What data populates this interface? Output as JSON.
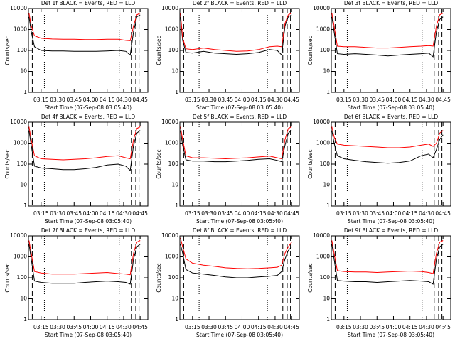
{
  "chart_data": [
    {
      "type": "line",
      "title": "Det 1f BLACK = Events, RED = LLD",
      "xlabel": "Start Time (07-Sep-08 03:05:40)",
      "ylabel": "Counts/sec",
      "log_y": true,
      "x": [
        184,
        186,
        189,
        195,
        205,
        215,
        225,
        235,
        245,
        255,
        265,
        272,
        276,
        279,
        282,
        285
      ],
      "series": [
        {
          "color": "#000000",
          "values": [
            4000,
            800,
            150,
            100,
            95,
            95,
            90,
            90,
            90,
            95,
            100,
            90,
            60,
            800,
            4000,
            5000
          ]
        },
        {
          "color": "#ff0000",
          "values": [
            6000,
            1500,
            500,
            380,
            350,
            340,
            340,
            330,
            330,
            340,
            340,
            300,
            290,
            1500,
            5000,
            6000
          ]
        }
      ],
      "xlim": [
        183.5,
        292
      ],
      "ylim": [
        1,
        10000
      ],
      "xticks": [
        {
          "value": 195,
          "label": "03:15"
        },
        {
          "value": 210,
          "label": "03:30"
        },
        {
          "value": 225,
          "label": "03:45"
        },
        {
          "value": 240,
          "label": "04:00"
        },
        {
          "value": 255,
          "label": "04:15"
        },
        {
          "value": 270,
          "label": "04:30"
        },
        {
          "value": 285,
          "label": "04:45"
        }
      ],
      "yticks": [
        1,
        10,
        100,
        1000,
        10000
      ],
      "dotted_x": [
        198,
        266
      ],
      "dashed_x": [
        187,
        277,
        281,
        284
      ]
    },
    {
      "type": "line",
      "title": "Det 2f BLACK = Events, RED = LLD",
      "xlabel": "Start Time (07-Sep-08 03:05:40)",
      "ylabel": "Counts/sec",
      "log_y": true,
      "x": [
        184,
        186,
        189,
        195,
        205,
        215,
        225,
        235,
        245,
        255,
        265,
        272,
        276,
        279,
        282,
        285
      ],
      "series": [
        {
          "color": "#000000",
          "values": [
            4000,
            300,
            80,
            75,
            90,
            75,
            70,
            65,
            70,
            80,
            110,
            100,
            60,
            1500,
            4000,
            5000
          ]
        },
        {
          "color": "#ff0000",
          "values": [
            6000,
            400,
            120,
            110,
            130,
            110,
            100,
            90,
            95,
            110,
            150,
            160,
            150,
            2000,
            5000,
            6000
          ]
        }
      ],
      "xlim": [
        183.5,
        292
      ],
      "ylim": [
        1,
        10000
      ],
      "xticks": [
        {
          "value": 195,
          "label": "03:15"
        },
        {
          "value": 210,
          "label": "03:30"
        },
        {
          "value": 225,
          "label": "03:45"
        },
        {
          "value": 240,
          "label": "04:00"
        },
        {
          "value": 255,
          "label": "04:15"
        },
        {
          "value": 270,
          "label": "04:30"
        },
        {
          "value": 285,
          "label": "04:45"
        }
      ],
      "yticks": [
        1,
        10,
        100,
        1000,
        10000
      ],
      "dotted_x": [
        201,
        263
      ],
      "dashed_x": [
        187,
        277,
        281,
        284
      ]
    },
    {
      "type": "line",
      "title": "Det 3f BLACK = Events, RED = LLD",
      "xlabel": "Start Time (07-Sep-08 03:05:40)",
      "ylabel": "Counts/sec",
      "log_y": true,
      "x": [
        184,
        186,
        189,
        195,
        205,
        215,
        225,
        235,
        245,
        255,
        265,
        272,
        276,
        279,
        282,
        285
      ],
      "series": [
        {
          "color": "#000000",
          "values": [
            4000,
            800,
            70,
            65,
            70,
            65,
            60,
            55,
            60,
            65,
            70,
            75,
            50,
            800,
            3000,
            4000
          ]
        },
        {
          "color": "#ff0000",
          "values": [
            6000,
            1500,
            160,
            150,
            150,
            140,
            130,
            130,
            140,
            150,
            160,
            170,
            160,
            1500,
            5000,
            6000
          ]
        }
      ],
      "xlim": [
        183.5,
        292
      ],
      "ylim": [
        1,
        10000
      ],
      "xticks": [
        {
          "value": 195,
          "label": "03:15"
        },
        {
          "value": 210,
          "label": "03:30"
        },
        {
          "value": 225,
          "label": "03:45"
        },
        {
          "value": 240,
          "label": "04:00"
        },
        {
          "value": 255,
          "label": "04:15"
        },
        {
          "value": 270,
          "label": "04:30"
        },
        {
          "value": 285,
          "label": "04:45"
        }
      ],
      "yticks": [
        1,
        10,
        100,
        1000,
        10000
      ],
      "dotted_x": [
        198,
        266
      ],
      "dashed_x": [
        187,
        277,
        281,
        284
      ]
    },
    {
      "type": "line",
      "title": "Det 4f BLACK = Events, RED = LLD",
      "xlabel": "Start Time (07-Sep-08 03:05:40)",
      "ylabel": "Counts/sec",
      "log_y": true,
      "x": [
        184,
        186,
        189,
        195,
        205,
        215,
        225,
        235,
        245,
        255,
        265,
        272,
        276,
        279,
        282,
        285
      ],
      "series": [
        {
          "color": "#000000",
          "values": [
            4000,
            800,
            80,
            65,
            60,
            55,
            55,
            60,
            70,
            90,
            100,
            80,
            50,
            800,
            3000,
            4000
          ]
        },
        {
          "color": "#ff0000",
          "values": [
            6000,
            1500,
            250,
            180,
            170,
            160,
            170,
            180,
            200,
            230,
            250,
            200,
            180,
            1500,
            5000,
            6000
          ]
        }
      ],
      "xlim": [
        183.5,
        292
      ],
      "ylim": [
        1,
        10000
      ],
      "xticks": [
        {
          "value": 195,
          "label": "03:15"
        },
        {
          "value": 210,
          "label": "03:30"
        },
        {
          "value": 225,
          "label": "03:45"
        },
        {
          "value": 240,
          "label": "04:00"
        },
        {
          "value": 255,
          "label": "04:15"
        },
        {
          "value": 270,
          "label": "04:30"
        },
        {
          "value": 285,
          "label": "04:45"
        }
      ],
      "yticks": [
        1,
        10,
        100,
        1000,
        10000
      ],
      "dotted_x": [
        198,
        266
      ],
      "dashed_x": [
        187,
        277,
        281,
        284
      ]
    },
    {
      "type": "line",
      "title": "Det 5f BLACK = Events, RED = LLD",
      "xlabel": "Start Time (07-Sep-08 03:05:40)",
      "ylabel": "Counts/sec",
      "log_y": true,
      "x": [
        184,
        186,
        189,
        195,
        205,
        215,
        225,
        235,
        245,
        255,
        265,
        272,
        276,
        279,
        282,
        285
      ],
      "series": [
        {
          "color": "#000000",
          "values": [
            4000,
            800,
            160,
            140,
            140,
            130,
            130,
            140,
            150,
            170,
            180,
            150,
            130,
            800,
            3000,
            4000
          ]
        },
        {
          "color": "#ff0000",
          "values": [
            6000,
            1500,
            250,
            200,
            200,
            190,
            180,
            190,
            200,
            220,
            240,
            200,
            180,
            1500,
            5000,
            6000
          ]
        }
      ],
      "xlim": [
        183.5,
        292
      ],
      "ylim": [
        1,
        10000
      ],
      "xticks": [
        {
          "value": 195,
          "label": "03:15"
        },
        {
          "value": 210,
          "label": "03:30"
        },
        {
          "value": 225,
          "label": "03:45"
        },
        {
          "value": 240,
          "label": "04:00"
        },
        {
          "value": 255,
          "label": "04:15"
        },
        {
          "value": 270,
          "label": "04:30"
        },
        {
          "value": 285,
          "label": "04:45"
        }
      ],
      "yticks": [
        1,
        10,
        100,
        1000,
        10000
      ],
      "dotted_x": [
        201,
        263
      ],
      "dashed_x": [
        187,
        277,
        281,
        284
      ]
    },
    {
      "type": "line",
      "title": "Det 6f BLACK = Events, RED = LLD",
      "xlabel": "Start Time (07-Sep-08 03:05:40)",
      "ylabel": "Counts/sec",
      "log_y": true,
      "x": [
        184,
        186,
        189,
        195,
        205,
        215,
        225,
        235,
        245,
        255,
        265,
        272,
        276,
        279,
        282,
        285
      ],
      "series": [
        {
          "color": "#000000",
          "values": [
            4000,
            1000,
            250,
            180,
            150,
            130,
            120,
            110,
            120,
            140,
            250,
            300,
            200,
            500,
            1500,
            2500
          ]
        },
        {
          "color": "#ff0000",
          "values": [
            6000,
            2000,
            900,
            800,
            750,
            700,
            650,
            600,
            600,
            650,
            800,
            900,
            700,
            1000,
            3000,
            4000
          ]
        }
      ],
      "xlim": [
        183.5,
        292
      ],
      "ylim": [
        1,
        10000
      ],
      "xticks": [
        {
          "value": 195,
          "label": "03:15"
        },
        {
          "value": 210,
          "label": "03:30"
        },
        {
          "value": 225,
          "label": "03:45"
        },
        {
          "value": 240,
          "label": "04:00"
        },
        {
          "value": 255,
          "label": "04:15"
        },
        {
          "value": 270,
          "label": "04:30"
        },
        {
          "value": 285,
          "label": "04:45"
        }
      ],
      "yticks": [
        1,
        10,
        100,
        1000,
        10000
      ],
      "dotted_x": [
        198,
        266
      ],
      "dashed_x": [
        187,
        277,
        281,
        284
      ]
    },
    {
      "type": "line",
      "title": "Det 7f BLACK = Events, RED = LLD",
      "xlabel": "Start Time (07-Sep-08 03:05:40)",
      "ylabel": "Counts/sec",
      "log_y": true,
      "x": [
        184,
        186,
        189,
        195,
        205,
        215,
        225,
        235,
        245,
        255,
        265,
        272,
        276,
        279,
        282,
        285
      ],
      "series": [
        {
          "color": "#000000",
          "values": [
            4000,
            800,
            70,
            60,
            55,
            55,
            55,
            60,
            65,
            70,
            65,
            60,
            50,
            800,
            3000,
            4000
          ]
        },
        {
          "color": "#ff0000",
          "values": [
            6000,
            1500,
            200,
            170,
            150,
            150,
            150,
            160,
            170,
            180,
            160,
            150,
            140,
            1500,
            5000,
            6000
          ]
        }
      ],
      "xlim": [
        183.5,
        292
      ],
      "ylim": [
        1,
        10000
      ],
      "xticks": [
        {
          "value": 195,
          "label": "03:15"
        },
        {
          "value": 210,
          "label": "03:30"
        },
        {
          "value": 225,
          "label": "03:45"
        },
        {
          "value": 240,
          "label": "04:00"
        },
        {
          "value": 255,
          "label": "04:15"
        },
        {
          "value": 270,
          "label": "04:30"
        },
        {
          "value": 285,
          "label": "04:45"
        }
      ],
      "yticks": [
        1,
        10,
        100,
        1000,
        10000
      ],
      "dotted_x": [
        198,
        266
      ],
      "dashed_x": [
        187,
        277,
        281,
        284
      ]
    },
    {
      "type": "line",
      "title": "Det 8f BLACK = Events, RED = LLD",
      "xlabel": "Start Time (07-Sep-08 03:05:40)",
      "ylabel": "Counts/sec",
      "log_y": true,
      "x": [
        184,
        186,
        189,
        195,
        205,
        215,
        225,
        235,
        245,
        255,
        265,
        272,
        276,
        279,
        282,
        285
      ],
      "series": [
        {
          "color": "#000000",
          "values": [
            4000,
            1500,
            250,
            170,
            150,
            130,
            110,
            100,
            100,
            110,
            120,
            130,
            200,
            800,
            2000,
            3000
          ]
        },
        {
          "color": "#ff0000",
          "values": [
            8000,
            3000,
            800,
            500,
            400,
            350,
            300,
            280,
            270,
            280,
            300,
            320,
            400,
            1500,
            3000,
            5000
          ]
        }
      ],
      "xlim": [
        183.5,
        292
      ],
      "ylim": [
        1,
        10000
      ],
      "xticks": [
        {
          "value": 195,
          "label": "03:15"
        },
        {
          "value": 210,
          "label": "03:30"
        },
        {
          "value": 225,
          "label": "03:45"
        },
        {
          "value": 240,
          "label": "04:00"
        },
        {
          "value": 255,
          "label": "04:15"
        },
        {
          "value": 270,
          "label": "04:30"
        },
        {
          "value": 285,
          "label": "04:45"
        }
      ],
      "yticks": [
        1,
        10,
        100,
        1000,
        10000
      ],
      "dotted_x": [
        201,
        263
      ],
      "dashed_x": [
        187,
        277,
        281,
        284
      ]
    },
    {
      "type": "line",
      "title": "Det 9f BLACK = Events, RED = LLD",
      "xlabel": "Start Time (07-Sep-08 03:05:40)",
      "ylabel": "Counts/sec",
      "log_y": true,
      "x": [
        184,
        186,
        189,
        195,
        205,
        215,
        225,
        235,
        245,
        255,
        265,
        272,
        276,
        279,
        282,
        285
      ],
      "series": [
        {
          "color": "#000000",
          "values": [
            4000,
            800,
            75,
            70,
            65,
            65,
            60,
            65,
            70,
            75,
            70,
            65,
            50,
            800,
            3000,
            4000
          ]
        },
        {
          "color": "#ff0000",
          "values": [
            6000,
            1500,
            220,
            200,
            190,
            190,
            180,
            190,
            200,
            210,
            200,
            180,
            160,
            1500,
            5000,
            6000
          ]
        }
      ],
      "xlim": [
        183.5,
        292
      ],
      "ylim": [
        1,
        10000
      ],
      "xticks": [
        {
          "value": 195,
          "label": "03:15"
        },
        {
          "value": 210,
          "label": "03:30"
        },
        {
          "value": 225,
          "label": "03:45"
        },
        {
          "value": 240,
          "label": "04:00"
        },
        {
          "value": 255,
          "label": "04:15"
        },
        {
          "value": 270,
          "label": "04:30"
        },
        {
          "value": 285,
          "label": "04:45"
        }
      ],
      "yticks": [
        1,
        10,
        100,
        1000,
        10000
      ],
      "dotted_x": [
        198,
        266
      ],
      "dashed_x": [
        187,
        277,
        281,
        284
      ]
    }
  ]
}
